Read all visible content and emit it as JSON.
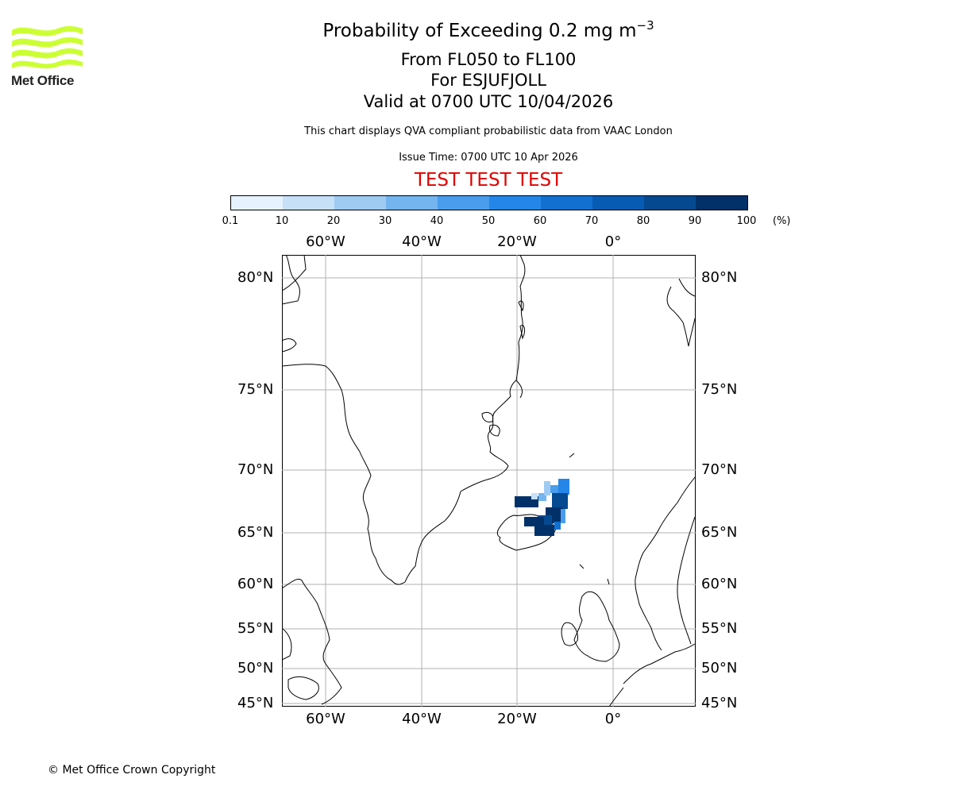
{
  "header": {
    "title_main": "Probability of Exceeding 0.2 mg m",
    "title_unit_exp": "−3",
    "range": "From FL050 to FL100",
    "volcano": "For ESJUFJOLL",
    "valid": "Valid at 0700 UTC 10/04/2026",
    "description": "This chart displays QVA compliant probabilistic data from VAAC London",
    "issue_time": "Issue Time: 0700 UTC 10 Apr 2026",
    "test_banner": "TEST TEST TEST"
  },
  "logo": {
    "text": "Met Office",
    "color": "#ccff33"
  },
  "colorbar": {
    "ticks": [
      "0.1",
      "10",
      "20",
      "30",
      "40",
      "50",
      "60",
      "70",
      "80",
      "90",
      "100"
    ],
    "unit": "(%)",
    "colors": [
      "#e6f2fd",
      "#c6e0f8",
      "#9fcbf3",
      "#74b4ef",
      "#4a9ded",
      "#2486e8",
      "#1270d1",
      "#085bb3",
      "#054a90",
      "#02316a"
    ]
  },
  "map": {
    "lon_labels": [
      "60°W",
      "40°W",
      "20°W",
      "0°"
    ],
    "lat_labels": [
      "80°N",
      "75°N",
      "70°N",
      "65°N",
      "60°N",
      "55°N",
      "50°N",
      "45°N"
    ],
    "grid_color": "#b0b0b0"
  },
  "footer": {
    "copyright": "© Met Office Crown Copyright"
  }
}
